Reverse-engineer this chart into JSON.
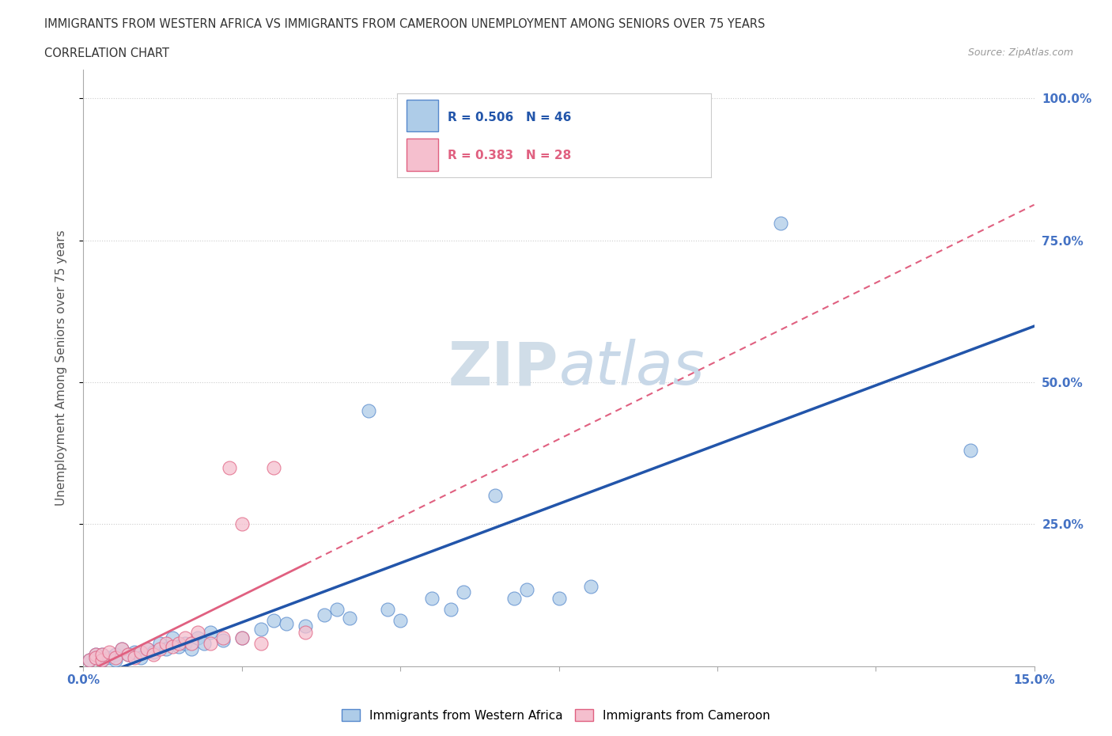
{
  "title_line1": "IMMIGRANTS FROM WESTERN AFRICA VS IMMIGRANTS FROM CAMEROON UNEMPLOYMENT AMONG SENIORS OVER 75 YEARS",
  "title_line2": "CORRELATION CHART",
  "source": "Source: ZipAtlas.com",
  "ylabel": "Unemployment Among Seniors over 75 years",
  "legend_blue_r": "R = 0.506",
  "legend_blue_n": "N = 46",
  "legend_pink_r": "R = 0.383",
  "legend_pink_n": "N = 28",
  "watermark_zip": "ZIP",
  "watermark_atlas": "atlas",
  "blue_color": "#aecce8",
  "pink_color": "#f5bfce",
  "blue_edge_color": "#5588cc",
  "pink_edge_color": "#e06080",
  "blue_line_color": "#2255aa",
  "pink_line_color": "#e06080",
  "blue_scatter": [
    [
      0.001,
      0.01
    ],
    [
      0.002,
      0.02
    ],
    [
      0.002,
      0.015
    ],
    [
      0.003,
      0.01
    ],
    [
      0.003,
      0.02
    ],
    [
      0.004,
      0.015
    ],
    [
      0.005,
      0.02
    ],
    [
      0.005,
      0.01
    ],
    [
      0.006,
      0.03
    ],
    [
      0.007,
      0.02
    ],
    [
      0.008,
      0.025
    ],
    [
      0.009,
      0.015
    ],
    [
      0.01,
      0.03
    ],
    [
      0.011,
      0.025
    ],
    [
      0.012,
      0.04
    ],
    [
      0.013,
      0.03
    ],
    [
      0.014,
      0.05
    ],
    [
      0.015,
      0.035
    ],
    [
      0.016,
      0.04
    ],
    [
      0.017,
      0.03
    ],
    [
      0.018,
      0.05
    ],
    [
      0.019,
      0.04
    ],
    [
      0.02,
      0.06
    ],
    [
      0.022,
      0.045
    ],
    [
      0.025,
      0.05
    ],
    [
      0.028,
      0.065
    ],
    [
      0.03,
      0.08
    ],
    [
      0.032,
      0.075
    ],
    [
      0.035,
      0.07
    ],
    [
      0.038,
      0.09
    ],
    [
      0.04,
      0.1
    ],
    [
      0.042,
      0.085
    ],
    [
      0.045,
      0.45
    ],
    [
      0.048,
      0.1
    ],
    [
      0.05,
      0.08
    ],
    [
      0.055,
      0.12
    ],
    [
      0.058,
      0.1
    ],
    [
      0.06,
      0.13
    ],
    [
      0.065,
      0.3
    ],
    [
      0.068,
      0.12
    ],
    [
      0.07,
      0.135
    ],
    [
      0.075,
      0.12
    ],
    [
      0.08,
      0.14
    ],
    [
      0.095,
      0.88
    ],
    [
      0.11,
      0.78
    ],
    [
      0.14,
      0.38
    ]
  ],
  "pink_scatter": [
    [
      0.001,
      0.01
    ],
    [
      0.002,
      0.02
    ],
    [
      0.002,
      0.015
    ],
    [
      0.003,
      0.01
    ],
    [
      0.003,
      0.02
    ],
    [
      0.004,
      0.025
    ],
    [
      0.005,
      0.015
    ],
    [
      0.006,
      0.03
    ],
    [
      0.007,
      0.02
    ],
    [
      0.008,
      0.015
    ],
    [
      0.009,
      0.025
    ],
    [
      0.01,
      0.03
    ],
    [
      0.011,
      0.02
    ],
    [
      0.012,
      0.03
    ],
    [
      0.013,
      0.04
    ],
    [
      0.014,
      0.035
    ],
    [
      0.015,
      0.04
    ],
    [
      0.016,
      0.05
    ],
    [
      0.017,
      0.04
    ],
    [
      0.018,
      0.06
    ],
    [
      0.02,
      0.04
    ],
    [
      0.022,
      0.05
    ],
    [
      0.023,
      0.35
    ],
    [
      0.025,
      0.05
    ],
    [
      0.028,
      0.04
    ],
    [
      0.03,
      0.35
    ],
    [
      0.035,
      0.06
    ],
    [
      0.025,
      0.25
    ]
  ],
  "xmin": 0.0,
  "xmax": 0.15,
  "ymin": 0.0,
  "ymax": 1.05,
  "yticks": [
    0.0,
    0.25,
    0.5,
    0.75,
    1.0
  ],
  "xticks": [
    0.0,
    0.025,
    0.05,
    0.075,
    0.1,
    0.125,
    0.15
  ],
  "grid_color": "#cccccc",
  "background_color": "#ffffff"
}
